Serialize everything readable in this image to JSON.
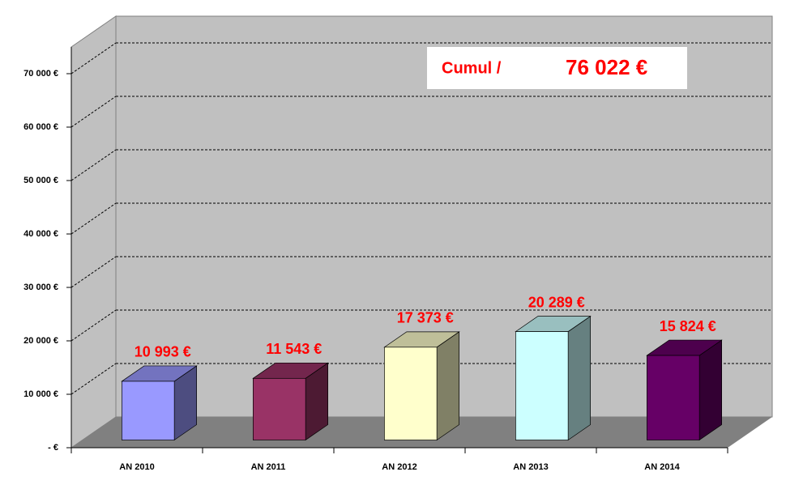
{
  "chart_data": {
    "type": "bar3d",
    "categories": [
      "AN 2010",
      "AN 2011",
      "AN 2012",
      "AN 2013",
      "AN 2014"
    ],
    "values": [
      10993,
      11543,
      17373,
      20289,
      15824
    ],
    "value_labels": [
      "10 993 €",
      "11 543 €",
      "17 373 €",
      "20 289 €",
      "15 824 €"
    ],
    "colors": [
      "#9999ff",
      "#993366",
      "#ffffcc",
      "#ccffff",
      "#660066"
    ],
    "ylim": [
      0,
      75000
    ],
    "yticks": [
      {
        "value": 0,
        "label": "-   €"
      },
      {
        "value": 10000,
        "label": "10 000 €"
      },
      {
        "value": 20000,
        "label": "20 000 €"
      },
      {
        "value": 30000,
        "label": "30 000 €"
      },
      {
        "value": 40000,
        "label": "40 000 €"
      },
      {
        "value": 50000,
        "label": "50 000 €"
      },
      {
        "value": 60000,
        "label": "60 000 €"
      },
      {
        "value": 70000,
        "label": "70 000 €"
      }
    ],
    "grid": true,
    "annotations": [
      "Cumul /",
      "76 022 €"
    ]
  }
}
